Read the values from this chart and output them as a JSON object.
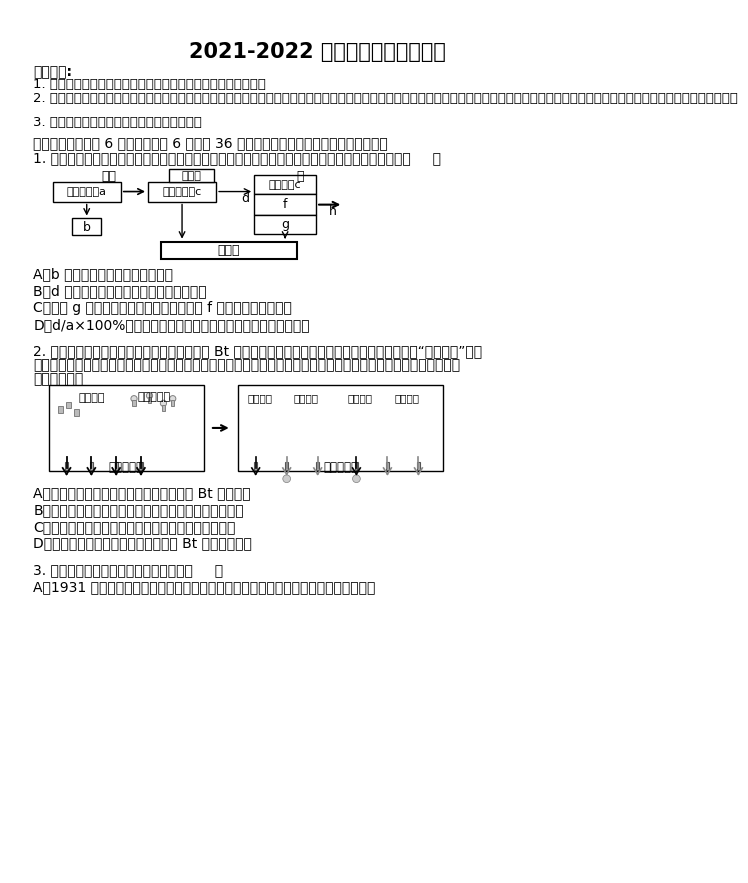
{
  "title": "2021-2022 学年高考生物模拟试卷",
  "background_color": "#ffffff",
  "text_color": "#000000",
  "notice_header": "注意事项:",
  "notice_items": [
    "1. 答卷前，考生务必将自己的姓名、准考证号填写在答题卡上。",
    "2. 回答选择题时，选出每小题答案后，用铅笔把答题卡上对应题目的答案标号涂黑，如需改动，用橡皮擦干净后，再选涂其它答案标号。回答非选择题时，将答案写在答题卡上，写在本试卷上无效。",
    "3. 考试结束后，将本试卷和答题卡一并交回。"
  ],
  "section1": "一、选择题：（公 6 小题，每小题 6 分，公 36 分。每小题只有一个选项符合题目要求）",
  "q1_text": "1. 如图表示桑基鱼塘生态系统部分能量流动示意图，图中字母代表相应的能量。下列叙述错误的是（     ）",
  "q1_options": [
    "A．b 表示桑树呼吸作用散失的能量",
    "B．d 表示桑树用于生长、发育、繁殖的能量",
    "C．如果 g 表示蚕传递给分解者的能量，则 f 表示未被利用的能量",
    "D．d/a×100%可以表示第一营养级到第二营养级的能量传递效率"
  ],
  "q2_intro_line1": "2. 利用竞争酶联免疫检测技术，检测抗虫棉中 Bt 抗虫蛋白表达量，原理如下图所示。检测之前，将“目的蛋白”的特",
  "q2_intro_line2": "异性抗体固定在支持物上，待测样本中的抗原和酶标记抗原竞争结合固相抗体，标记抗原的酶可催化颜色反应。下列",
  "q2_intro_line3": "说法错误的是",
  "q2_options": [
    "A．检测过程中待测抗原和酶标记抗原均为 Bt 抗虫蛋白",
    "B．需设置仅有酶标记抗原或者仅有待测抗原的两组对照",
    "C．实验组和对照组加入底物的量及显色时间必须一致",
    "D．反应体系中蓝色越深说明待测样品 Bt 蛋白含量越高"
  ],
  "q3_intro": "3. 下列有关植物激素的说法，正确的是（     ）",
  "q3_option_a": "A．1931 年科学家从人尿中分离出的吵哚乙酸具有生长素效应，则吵哚乙酸是植物激素"
}
